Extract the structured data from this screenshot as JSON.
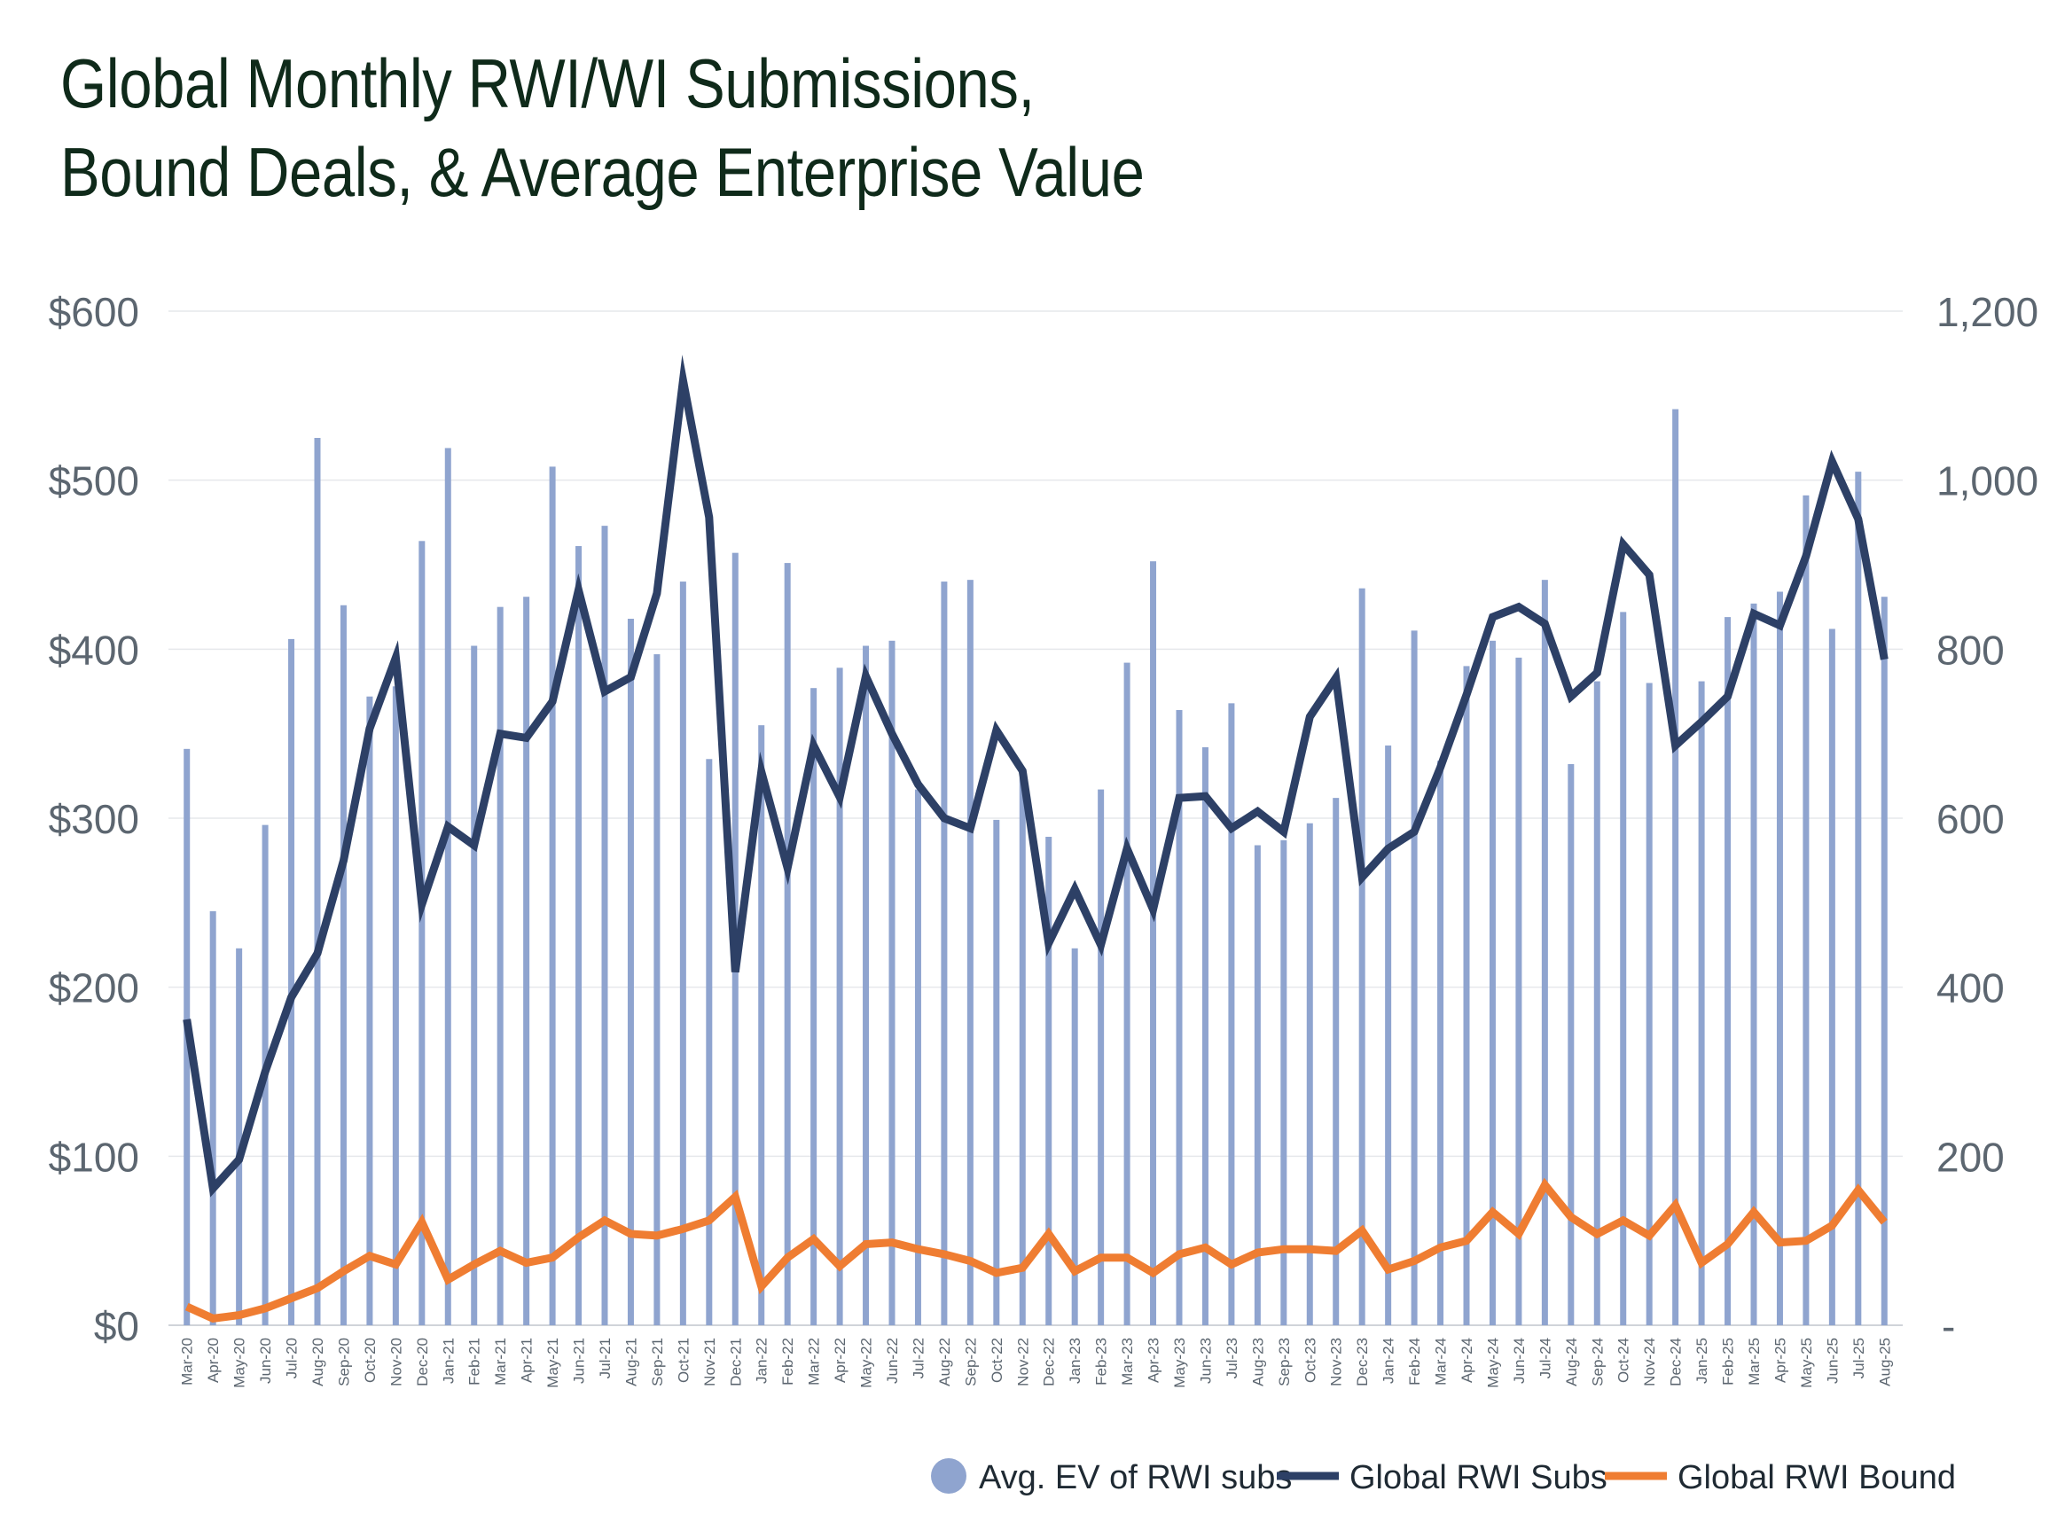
{
  "chart_data": {
    "type": "bar",
    "title": "Global Monthly RWI/WI Submissions, Bound Deals, & Average Enterprise Value",
    "title_lines": [
      "Global Monthly RWI/WI Submissions,",
      "Bound Deals, & Average Enterprise Value"
    ],
    "categories": [
      "Mar-20",
      "Apr-20",
      "May-20",
      "Jun-20",
      "Jul-20",
      "Aug-20",
      "Sep-20",
      "Oct-20",
      "Nov-20",
      "Dec-20",
      "Jan-21",
      "Feb-21",
      "Mar-21",
      "Apr-21",
      "May-21",
      "Jun-21",
      "Jul-21",
      "Aug-21",
      "Sep-21",
      "Oct-21",
      "Nov-21",
      "Dec-21",
      "Jan-22",
      "Feb-22",
      "Mar-22",
      "Apr-22",
      "May-22",
      "Jun-22",
      "Jul-22",
      "Aug-22",
      "Sep-22",
      "Oct-22",
      "Nov-22",
      "Dec-22",
      "Jan-23",
      "Feb-23",
      "Mar-23",
      "Apr-23",
      "May-23",
      "Jun-23",
      "Jul-23",
      "Aug-23",
      "Sep-23",
      "Oct-23",
      "Nov-23",
      "Dec-23",
      "Jan-24",
      "Feb-24",
      "Mar-24",
      "Apr-24",
      "May-24",
      "Jun-24",
      "Jul-24",
      "Aug-24",
      "Sep-24",
      "Oct-24",
      "Nov-24",
      "Dec-24",
      "Jan-25",
      "Feb-25",
      "Mar-25",
      "Apr-25",
      "May-25",
      "Jun-25",
      "Jul-25",
      "Aug-25"
    ],
    "left_axis": {
      "ylim": [
        0,
        600
      ],
      "ticks": [
        0,
        100,
        200,
        300,
        400,
        500,
        600
      ],
      "tick_labels": [
        "$0",
        "$100",
        "$200",
        "$300",
        "$400",
        "$500",
        "$600"
      ]
    },
    "right_axis": {
      "ylim": [
        0,
        1200
      ],
      "ticks": [
        0,
        200,
        400,
        600,
        800,
        1000,
        1200
      ],
      "tick_labels": [
        "-",
        "200",
        "400",
        "600",
        "800",
        "1,000",
        "1,200"
      ]
    },
    "grid": true,
    "legend_position": "bottom-right",
    "series": [
      {
        "name": "Avg. EV of RWI subs",
        "type": "bar",
        "axis": "left",
        "color": "#8fa4cf",
        "values": [
          341,
          245,
          223,
          296,
          406,
          525,
          426,
          372,
          378,
          464,
          519,
          402,
          425,
          431,
          508,
          461,
          473,
          418,
          397,
          440,
          335,
          457,
          355,
          451,
          377,
          389,
          402,
          405,
          317,
          440,
          441,
          299,
          324,
          289,
          223,
          317,
          392,
          452,
          364,
          342,
          368,
          284,
          287,
          297,
          312,
          436,
          343,
          411,
          334,
          390,
          405,
          395,
          441,
          332,
          381,
          422,
          380,
          542,
          381,
          419,
          427,
          434,
          491,
          412,
          505,
          431
        ]
      },
      {
        "name": "Global RWI Subs",
        "type": "line",
        "axis": "right",
        "color": "#2d4066",
        "values": [
          362,
          162,
          196,
          300,
          388,
          440,
          550,
          706,
          790,
          498,
          590,
          568,
          700,
          695,
          738,
          870,
          750,
          767,
          866,
          1118,
          956,
          418,
          655,
          541,
          686,
          625,
          768,
          700,
          640,
          600,
          588,
          704,
          656,
          452,
          516,
          450,
          564,
          492,
          624,
          626,
          588,
          608,
          584,
          720,
          766,
          530,
          564,
          584,
          660,
          746,
          838,
          850,
          830,
          744,
          772,
          924,
          888,
          686,
          714,
          744,
          842,
          828,
          910,
          1022,
          954,
          788
        ]
      },
      {
        "name": "Global RWI Bound",
        "type": "line",
        "axis": "right",
        "color": "#ef7d32",
        "values": [
          22,
          8,
          12,
          20,
          32,
          44,
          64,
          82,
          72,
          122,
          54,
          72,
          88,
          74,
          80,
          104,
          124,
          108,
          106,
          114,
          124,
          152,
          46,
          80,
          102,
          70,
          96,
          98,
          90,
          84,
          76,
          62,
          68,
          108,
          64,
          80,
          80,
          62,
          84,
          92,
          72,
          86,
          90,
          90,
          88,
          112,
          66,
          76,
          92,
          100,
          134,
          108,
          166,
          128,
          108,
          124,
          106,
          142,
          74,
          96,
          134,
          98,
          100,
          118,
          160,
          122
        ]
      }
    ]
  }
}
